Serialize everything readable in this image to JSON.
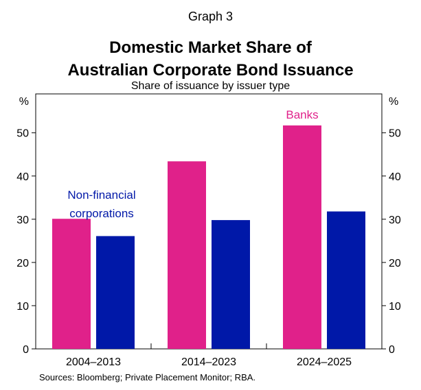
{
  "graph_label": "Graph 3",
  "title_line1": "Domestic Market Share of",
  "title_line2": "Australian Corporate Bond Issuance",
  "subtitle": "Share of issuance by issuer type",
  "sources": "Sources:   Bloomberg; Private Placement Monitor; RBA.",
  "chart_data": {
    "type": "bar",
    "categories": [
      "2004–2013",
      "2014–2023",
      "2024–2025"
    ],
    "series": [
      {
        "name": "Banks",
        "color": "#E0218A",
        "values": [
          30.1,
          43.4,
          51.7
        ]
      },
      {
        "name": "Non-financial corporations",
        "color": "#0018A8",
        "values": [
          26.1,
          29.8,
          31.8
        ]
      }
    ],
    "ylabel_left": "%",
    "ylabel_right": "%",
    "ylim": [
      0,
      59
    ],
    "yticks": [
      0,
      10,
      20,
      30,
      40,
      50
    ],
    "legend_labels": [
      {
        "text": "Banks",
        "color": "#E0218A"
      },
      {
        "text": "Non-financial",
        "color": "#0018A8"
      },
      {
        "text": "corporations",
        "color": "#0018A8"
      }
    ],
    "grid": false
  }
}
